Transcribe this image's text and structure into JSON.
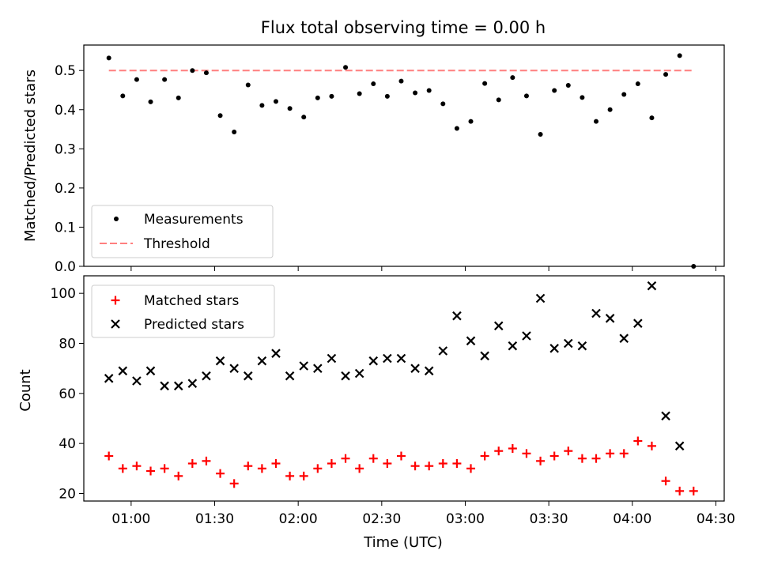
{
  "chart_data": [
    {
      "type": "scatter",
      "title": "Flux total observing time = 0.00 h",
      "xlabel": "",
      "ylabel": "Matched/Predicted stars",
      "ylim": [
        0,
        0.565
      ],
      "yticks": [
        "0.0",
        "0.1",
        "0.2",
        "0.3",
        "0.4",
        "0.5"
      ],
      "ytick_values": [
        0,
        0.1,
        0.2,
        0.3,
        0.4,
        0.5
      ],
      "legend": {
        "position": "lower-left",
        "entries": [
          "Measurements",
          "Threshold"
        ]
      },
      "threshold": {
        "name": "Threshold",
        "y": 0.5,
        "x_start": "00:52",
        "x_end": "04:22",
        "color": "#ff7f7f"
      },
      "series": [
        {
          "name": "Measurements",
          "color": "#000000",
          "x": [
            "00:52",
            "00:57",
            "01:02",
            "01:07",
            "01:12",
            "01:17",
            "01:22",
            "01:27",
            "01:32",
            "01:37",
            "01:42",
            "01:47",
            "01:52",
            "01:57",
            "02:02",
            "02:07",
            "02:12",
            "02:17",
            "02:22",
            "02:27",
            "02:32",
            "02:37",
            "02:42",
            "02:47",
            "02:52",
            "02:57",
            "03:02",
            "03:07",
            "03:12",
            "03:17",
            "03:22",
            "03:27",
            "03:32",
            "03:37",
            "03:42",
            "03:47",
            "03:52",
            "03:57",
            "04:02",
            "04:07",
            "04:12",
            "04:17",
            "04:22"
          ],
          "values": [
            0.532,
            0.435,
            0.477,
            0.42,
            0.477,
            0.43,
            0.5,
            0.494,
            0.385,
            0.343,
            0.463,
            0.411,
            0.421,
            0.403,
            0.381,
            0.43,
            0.434,
            0.508,
            0.441,
            0.466,
            0.434,
            0.473,
            0.443,
            0.449,
            0.415,
            0.352,
            0.37,
            0.467,
            0.425,
            0.482,
            0.435,
            0.337,
            0.449,
            0.462,
            0.431,
            0.37,
            0.4,
            0.439,
            0.466,
            0.379,
            0.49,
            0.538,
            0.0
          ]
        }
      ]
    },
    {
      "type": "scatter",
      "title": "",
      "xlabel": "Time (UTC)",
      "ylabel": "Count",
      "ylim": [
        17,
        107
      ],
      "xlim": [
        "00:43",
        "04:33"
      ],
      "xticks": [
        "01:00",
        "01:30",
        "02:00",
        "02:30",
        "03:00",
        "03:30",
        "04:00",
        "04:30"
      ],
      "yticks": [
        "20",
        "40",
        "60",
        "80",
        "100"
      ],
      "ytick_values": [
        20,
        40,
        60,
        80,
        100
      ],
      "legend": {
        "position": "top-left",
        "entries": [
          "Matched stars",
          "Predicted stars"
        ]
      },
      "series": [
        {
          "name": "Matched stars",
          "marker": "+",
          "color": "#ff0000",
          "x": [
            "00:52",
            "00:57",
            "01:02",
            "01:07",
            "01:12",
            "01:17",
            "01:22",
            "01:27",
            "01:32",
            "01:37",
            "01:42",
            "01:47",
            "01:52",
            "01:57",
            "02:02",
            "02:07",
            "02:12",
            "02:17",
            "02:22",
            "02:27",
            "02:32",
            "02:37",
            "02:42",
            "02:47",
            "02:52",
            "02:57",
            "03:02",
            "03:07",
            "03:12",
            "03:17",
            "03:22",
            "03:27",
            "03:32",
            "03:37",
            "03:42",
            "03:47",
            "03:52",
            "03:57",
            "04:02",
            "04:07",
            "04:12",
            "04:17",
            "04:22"
          ],
          "values": [
            35,
            30,
            31,
            29,
            30,
            27,
            32,
            33,
            28,
            24,
            31,
            30,
            32,
            27,
            27,
            30,
            32,
            34,
            30,
            34,
            32,
            35,
            31,
            31,
            32,
            32,
            30,
            35,
            37,
            38,
            36,
            33,
            35,
            37,
            34,
            34,
            36,
            36,
            41,
            39,
            25,
            21,
            21
          ]
        },
        {
          "name": "Predicted stars",
          "marker": "x",
          "color": "#000000",
          "x": [
            "00:52",
            "00:57",
            "01:02",
            "01:07",
            "01:12",
            "01:17",
            "01:22",
            "01:27",
            "01:32",
            "01:37",
            "01:42",
            "01:47",
            "01:52",
            "01:57",
            "02:02",
            "02:07",
            "02:12",
            "02:17",
            "02:22",
            "02:27",
            "02:32",
            "02:37",
            "02:42",
            "02:47",
            "02:52",
            "02:57",
            "03:02",
            "03:07",
            "03:12",
            "03:17",
            "03:22",
            "03:27",
            "03:32",
            "03:37",
            "03:42",
            "03:47",
            "03:52",
            "03:57",
            "04:02",
            "04:07",
            "04:12",
            "04:17"
          ],
          "values": [
            66,
            69,
            65,
            69,
            63,
            63,
            64,
            67,
            73,
            70,
            67,
            73,
            76,
            67,
            71,
            70,
            74,
            67,
            68,
            73,
            74,
            74,
            70,
            69,
            77,
            91,
            81,
            75,
            87,
            79,
            83,
            98,
            78,
            80,
            79,
            92,
            90,
            82,
            88,
            103,
            51,
            39
          ]
        }
      ]
    }
  ]
}
